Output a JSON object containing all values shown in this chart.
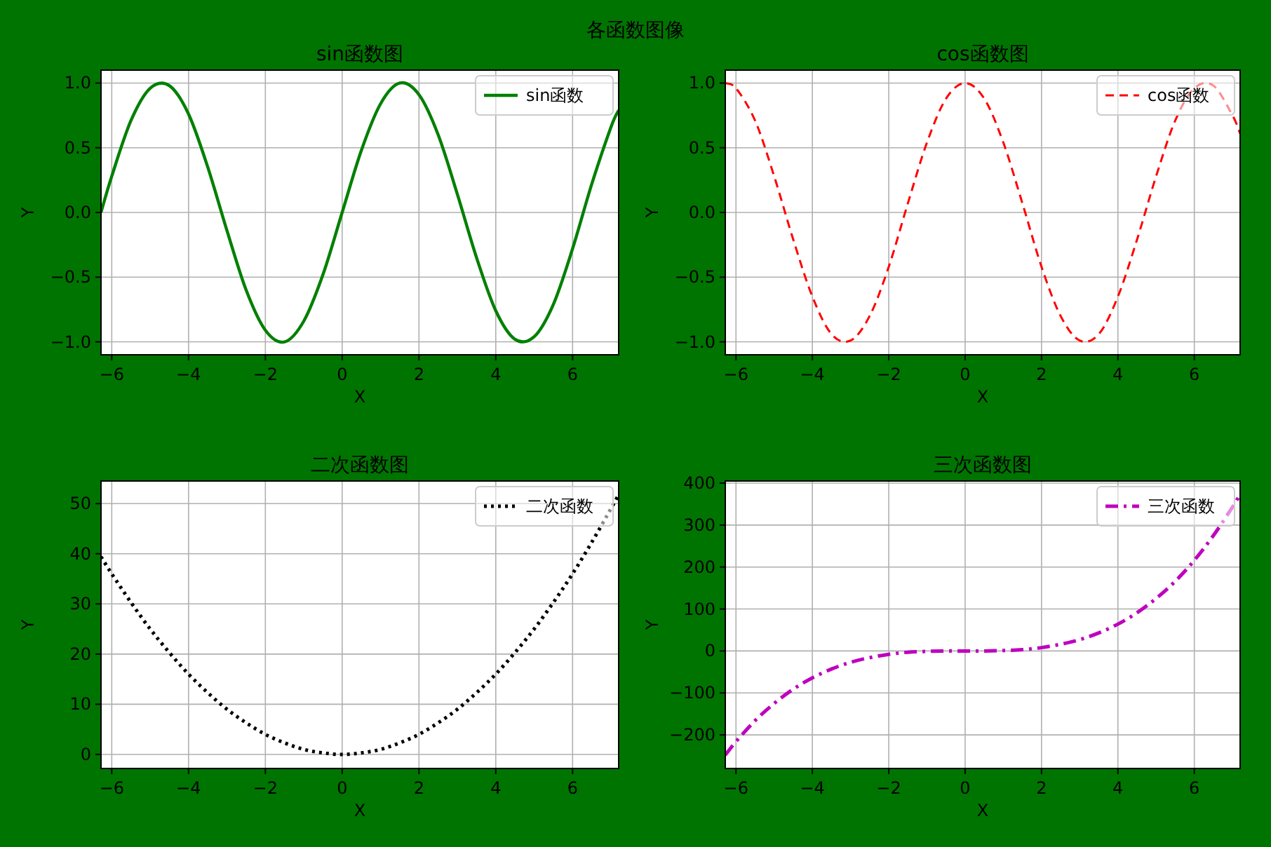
{
  "chart_data": [
    {
      "type": "line",
      "title": "sin函数图",
      "xlabel": "X",
      "ylabel": "Y",
      "annotations": [
        "各函数图像"
      ],
      "xlim": [
        -6.28,
        7.2
      ],
      "ylim": [
        -1.1,
        1.1
      ],
      "xticks": [
        -6,
        -4,
        -2,
        0,
        2,
        4,
        6
      ],
      "yticks": [
        {
          "value": -1,
          "label": "−1.0"
        },
        {
          "value": -0.5,
          "label": "−0.5"
        },
        {
          "value": 0,
          "label": "0.0"
        },
        {
          "value": 0.5,
          "label": "0.5"
        },
        {
          "value": 1,
          "label": "1.0"
        }
      ],
      "grid": true,
      "legend": "top right",
      "line_style": "solid",
      "x": [
        -6.28,
        -6,
        -5.5,
        -5,
        -4.5,
        -4,
        -3.5,
        -3,
        -2.5,
        -2,
        -1.5,
        -1,
        -0.5,
        0,
        0.5,
        1,
        1.5,
        2,
        2.5,
        3,
        3.5,
        4,
        4.5,
        5,
        5.5,
        6,
        6.5,
        7,
        7.2
      ],
      "series": [
        {
          "name": "sin函数",
          "color": "#008000",
          "values": [
            0,
            0.28,
            0.71,
            0.96,
            0.98,
            0.76,
            0.35,
            -0.14,
            -0.6,
            -0.91,
            -1,
            -0.84,
            -0.48,
            0,
            0.48,
            0.84,
            1,
            0.91,
            0.6,
            0.14,
            -0.35,
            -0.76,
            -0.98,
            -0.96,
            -0.71,
            -0.28,
            0.22,
            0.66,
            0.79
          ]
        }
      ]
    },
    {
      "type": "line",
      "title": "cos函数图",
      "xlabel": "X",
      "ylabel": "Y",
      "xlim": [
        -6.28,
        7.2
      ],
      "ylim": [
        -1.1,
        1.1
      ],
      "xticks": [
        -6,
        -4,
        -2,
        0,
        2,
        4,
        6
      ],
      "yticks": [
        {
          "value": -1,
          "label": "−1.0"
        },
        {
          "value": -0.5,
          "label": "−0.5"
        },
        {
          "value": 0,
          "label": "0.0"
        },
        {
          "value": 0.5,
          "label": "0.5"
        },
        {
          "value": 1,
          "label": "1.0"
        }
      ],
      "grid": true,
      "legend": "top right",
      "line_style": "dashed",
      "x": [
        -6.28,
        -6,
        -5.5,
        -5,
        -4.5,
        -4,
        -3.5,
        -3,
        -2.5,
        -2,
        -1.5,
        -1,
        -0.5,
        0,
        0.5,
        1,
        1.5,
        2,
        2.5,
        3,
        3.5,
        4,
        4.5,
        5,
        5.5,
        6,
        6.5,
        7,
        7.2
      ],
      "series": [
        {
          "name": "cos函数",
          "color": "#ff0000",
          "values": [
            1,
            0.96,
            0.71,
            0.28,
            -0.21,
            -0.65,
            -0.94,
            -0.99,
            -0.8,
            -0.42,
            0.07,
            0.54,
            0.88,
            1,
            0.88,
            0.54,
            0.07,
            -0.42,
            -0.8,
            -0.99,
            -0.94,
            -0.65,
            -0.21,
            0.28,
            0.71,
            0.96,
            0.98,
            0.75,
            0.61
          ]
        }
      ]
    },
    {
      "type": "line",
      "title": "二次函数图",
      "xlabel": "X",
      "ylabel": "Y",
      "xlim": [
        -6.28,
        7.2
      ],
      "ylim": [
        -2.8,
        54.5
      ],
      "xticks": [
        -6,
        -4,
        -2,
        0,
        2,
        4,
        6
      ],
      "yticks": [
        0,
        10,
        20,
        30,
        40,
        50
      ],
      "grid": true,
      "legend": "top right",
      "line_style": "dotted",
      "x": [
        -6.28,
        -6,
        -5.5,
        -5,
        -4.5,
        -4,
        -3.5,
        -3,
        -2.5,
        -2,
        -1.5,
        -1,
        -0.5,
        0,
        0.5,
        1,
        1.5,
        2,
        2.5,
        3,
        3.5,
        4,
        4.5,
        5,
        5.5,
        6,
        6.5,
        7,
        7.2
      ],
      "series": [
        {
          "name": "二次函数",
          "color": "#000000",
          "values": [
            39.4,
            36,
            30.3,
            25,
            20.3,
            16,
            12.3,
            9,
            6.3,
            4,
            2.3,
            1,
            0.3,
            0,
            0.3,
            1,
            2.3,
            4,
            6.3,
            9,
            12.3,
            16,
            20.3,
            25,
            30.3,
            36,
            42.3,
            49,
            51.8
          ]
        }
      ]
    },
    {
      "type": "line",
      "title": "三次函数图",
      "xlabel": "X",
      "ylabel": "Y",
      "xlim": [
        -6.28,
        7.2
      ],
      "ylim": [
        -280,
        405
      ],
      "xticks": [
        -6,
        -4,
        -2,
        0,
        2,
        4,
        6
      ],
      "yticks": [
        {
          "value": -200,
          "label": "−200"
        },
        {
          "value": -100,
          "label": "−100"
        },
        0,
        100,
        200,
        300,
        400
      ],
      "grid": true,
      "legend": "top right",
      "line_style": "dashdot",
      "x": [
        -6.28,
        -6,
        -5.5,
        -5,
        -4.5,
        -4,
        -3.5,
        -3,
        -2.5,
        -2,
        -1.5,
        -1,
        -0.5,
        0,
        0.5,
        1,
        1.5,
        2,
        2.5,
        3,
        3.5,
        4,
        4.5,
        5,
        5.5,
        6,
        6.5,
        7,
        7.2
      ],
      "series": [
        {
          "name": "三次函数",
          "color": "#bf00bf",
          "values": [
            -248,
            -216,
            -166,
            -125,
            -91,
            -64,
            -43,
            -27,
            -16,
            -8,
            -3,
            -1,
            0,
            0,
            0,
            1,
            3,
            8,
            16,
            27,
            43,
            64,
            91,
            125,
            166,
            216,
            275,
            343,
            373
          ]
        }
      ]
    }
  ]
}
